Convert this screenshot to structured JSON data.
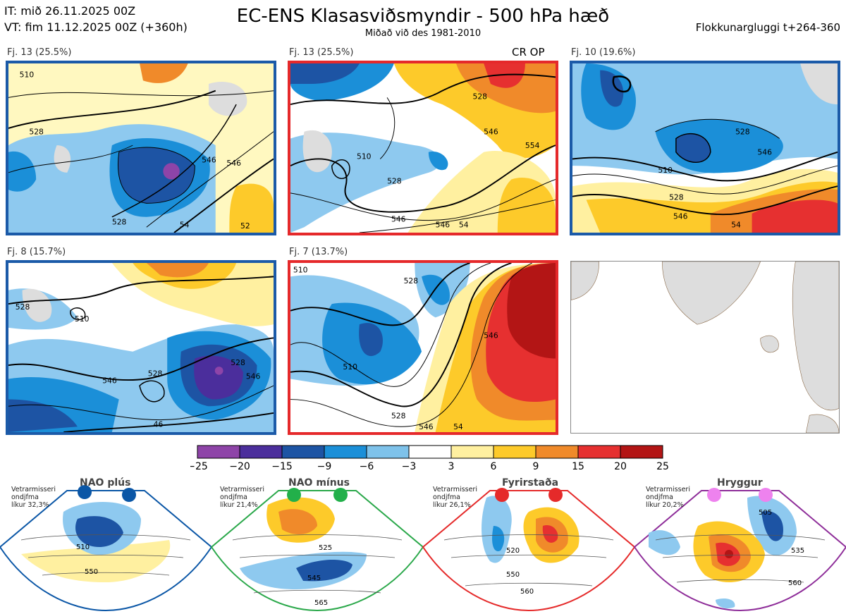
{
  "header": {
    "initial_time": "IT: mið 26.11.2025 00Z",
    "valid_time": "VT: fim 11.12.2025 00Z  (+360h)",
    "title": "EC-ENS Klasasviðsmyndir - 500 hPa hæð",
    "subtitle": "Miðað við des 1981-2010",
    "window": "Flokkunargluggi t+264-360"
  },
  "panels": [
    {
      "label": "Fj. 13 (25.5%)",
      "border": "blue",
      "contours": [
        "510",
        "528",
        "528",
        "546",
        "54",
        "546",
        "52"
      ]
    },
    {
      "label": "Fj. 13 (25.5%)",
      "border": "red",
      "tag": "CR OP",
      "contours": [
        "528",
        "510",
        "528",
        "546",
        "546",
        "554",
        "546",
        "54"
      ]
    },
    {
      "label": "Fj. 10 (19.6%)",
      "border": "blue",
      "contours": [
        "528",
        "510",
        "546",
        "528",
        "546",
        "54"
      ]
    },
    {
      "label": "Fj. 8 (15.7%)",
      "border": "blue",
      "contours": [
        "528",
        "510",
        "528",
        "528",
        "546",
        "546",
        "46"
      ]
    },
    {
      "label": "Fj. 7 (13.7%)",
      "border": "red",
      "contours": [
        "510",
        "528",
        "546",
        "510",
        "528",
        "546",
        "54"
      ]
    }
  ],
  "colorbar": {
    "ticks": [
      "−25",
      "−20",
      "−15",
      "−9",
      "−6",
      "−3",
      "3",
      "6",
      "9",
      "15",
      "20",
      "25"
    ],
    "colors": [
      "#8e44a8",
      "#4b2e9c",
      "#1d54a4",
      "#1b8fd8",
      "#7ec2ea",
      "#ffffff",
      "#fff0a0",
      "#fdca2a",
      "#f08a2a",
      "#e63030",
      "#b31515"
    ]
  },
  "regimes": [
    {
      "name": "NAO plús",
      "note": [
        "Vetrarmisseri",
        "ondjfma",
        "líkur 32,3%"
      ],
      "color": "#0a56a6",
      "dot": "#0a56a6",
      "contours": [
        "510",
        "550"
      ]
    },
    {
      "name": "NAO mínus",
      "note": [
        "Vetrarmisseri",
        "ondjfma",
        "líkur 21,4%"
      ],
      "color": "#2aa84a",
      "dot": "#22b04a",
      "contours": [
        "525",
        "545",
        "565"
      ]
    },
    {
      "name": "Fyrirstaða",
      "note": [
        "Vetrarmisseri",
        "ondjfma",
        "líkur 26,1%"
      ],
      "color": "#e52a2a",
      "dot": "#e52a2a",
      "contours": [
        "520",
        "550",
        "560"
      ]
    },
    {
      "name": "Hryggur",
      "note": [
        "Vetrarmisseri",
        "ondjfma",
        "líkur 20,2%"
      ],
      "color": "#8e2d99",
      "dot": "#ee82ee",
      "contours": [
        "505",
        "535",
        "560"
      ]
    }
  ]
}
